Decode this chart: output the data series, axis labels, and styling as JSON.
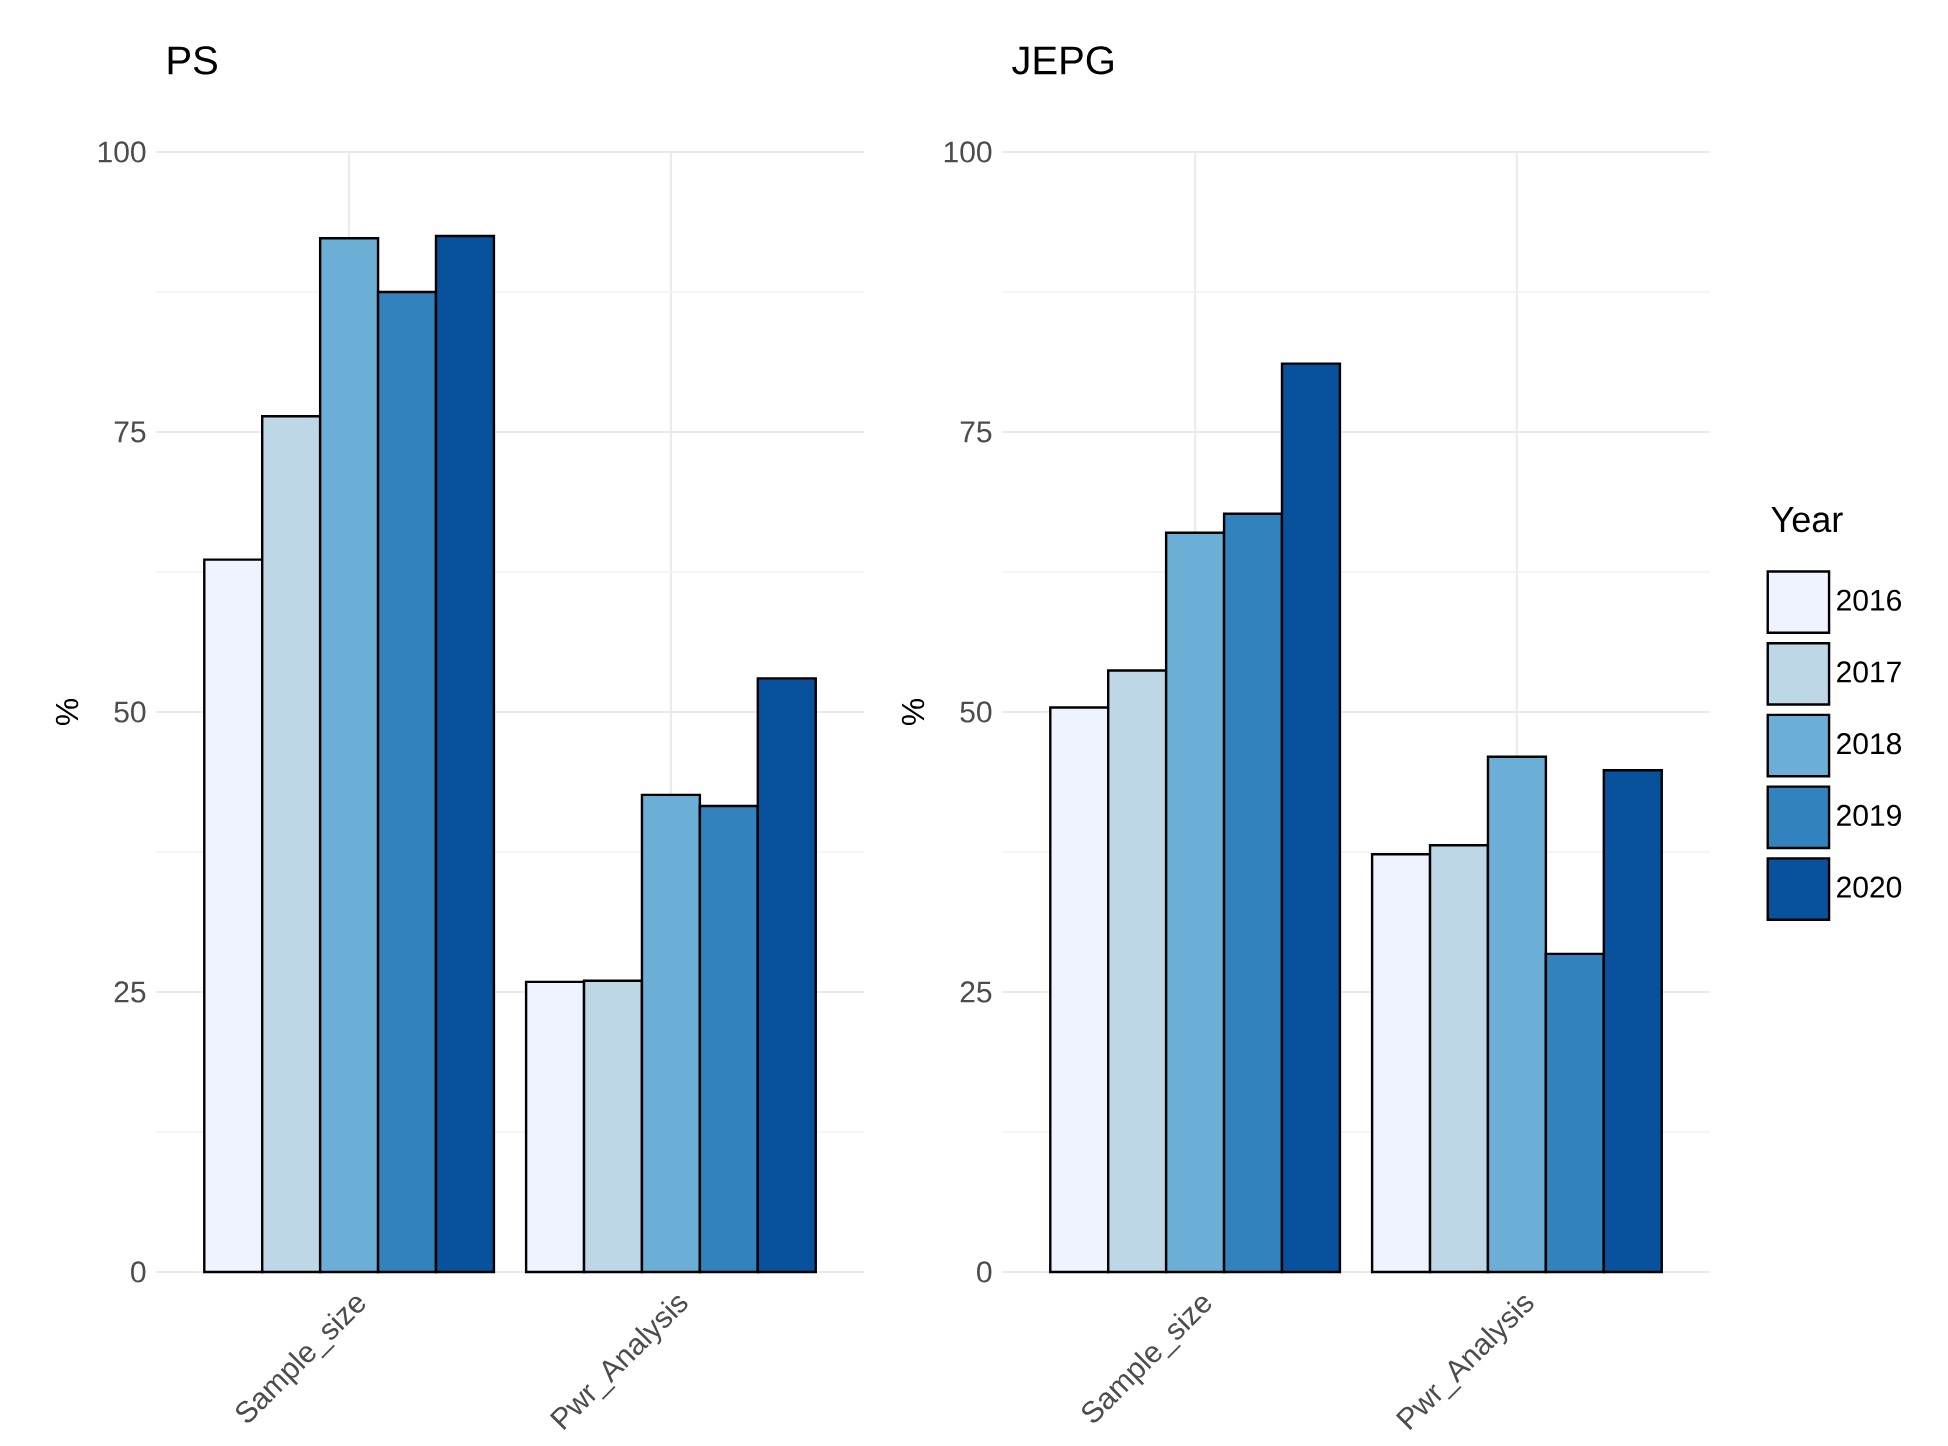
{
  "chart_data": [
    {
      "type": "bar",
      "title": "PS",
      "ylabel": "%",
      "categories": [
        "Sample_size",
        "Pwr_Analysis"
      ],
      "ylim": [
        0,
        100
      ],
      "yticks": [
        0,
        25,
        50,
        75,
        100
      ],
      "grid": true,
      "legend": false,
      "series": [
        {
          "color": "#eff3ff",
          "values": [
            63.6,
            25.9
          ]
        },
        {
          "color": "#bdd7e7",
          "values": [
            76.4,
            26.0
          ]
        },
        {
          "color": "#6baed6",
          "values": [
            92.3,
            42.6
          ]
        },
        {
          "color": "#3182bd",
          "values": [
            87.5,
            41.6
          ]
        },
        {
          "color": "#08519c",
          "values": [
            92.5,
            53.0
          ]
        }
      ]
    },
    {
      "type": "bar",
      "title": "JEPG",
      "ylabel": "%",
      "categories": [
        "Sample_size",
        "Pwr_Analysis"
      ],
      "ylim": [
        0,
        100
      ],
      "yticks": [
        0,
        25,
        50,
        75,
        100
      ],
      "grid": true,
      "legend": "right",
      "legend_title": "Year",
      "series": [
        {
          "name": "2016",
          "color": "#eff3ff",
          "values": [
            50.4,
            37.3
          ]
        },
        {
          "name": "2017",
          "color": "#bdd7e7",
          "values": [
            53.7,
            38.1
          ]
        },
        {
          "name": "2018",
          "color": "#6baed6",
          "values": [
            66.0,
            46.0
          ]
        },
        {
          "name": "2019",
          "color": "#3182bd",
          "values": [
            67.7,
            28.4
          ]
        },
        {
          "name": "2020",
          "color": "#08519c",
          "values": [
            81.1,
            44.8
          ]
        }
      ]
    }
  ]
}
